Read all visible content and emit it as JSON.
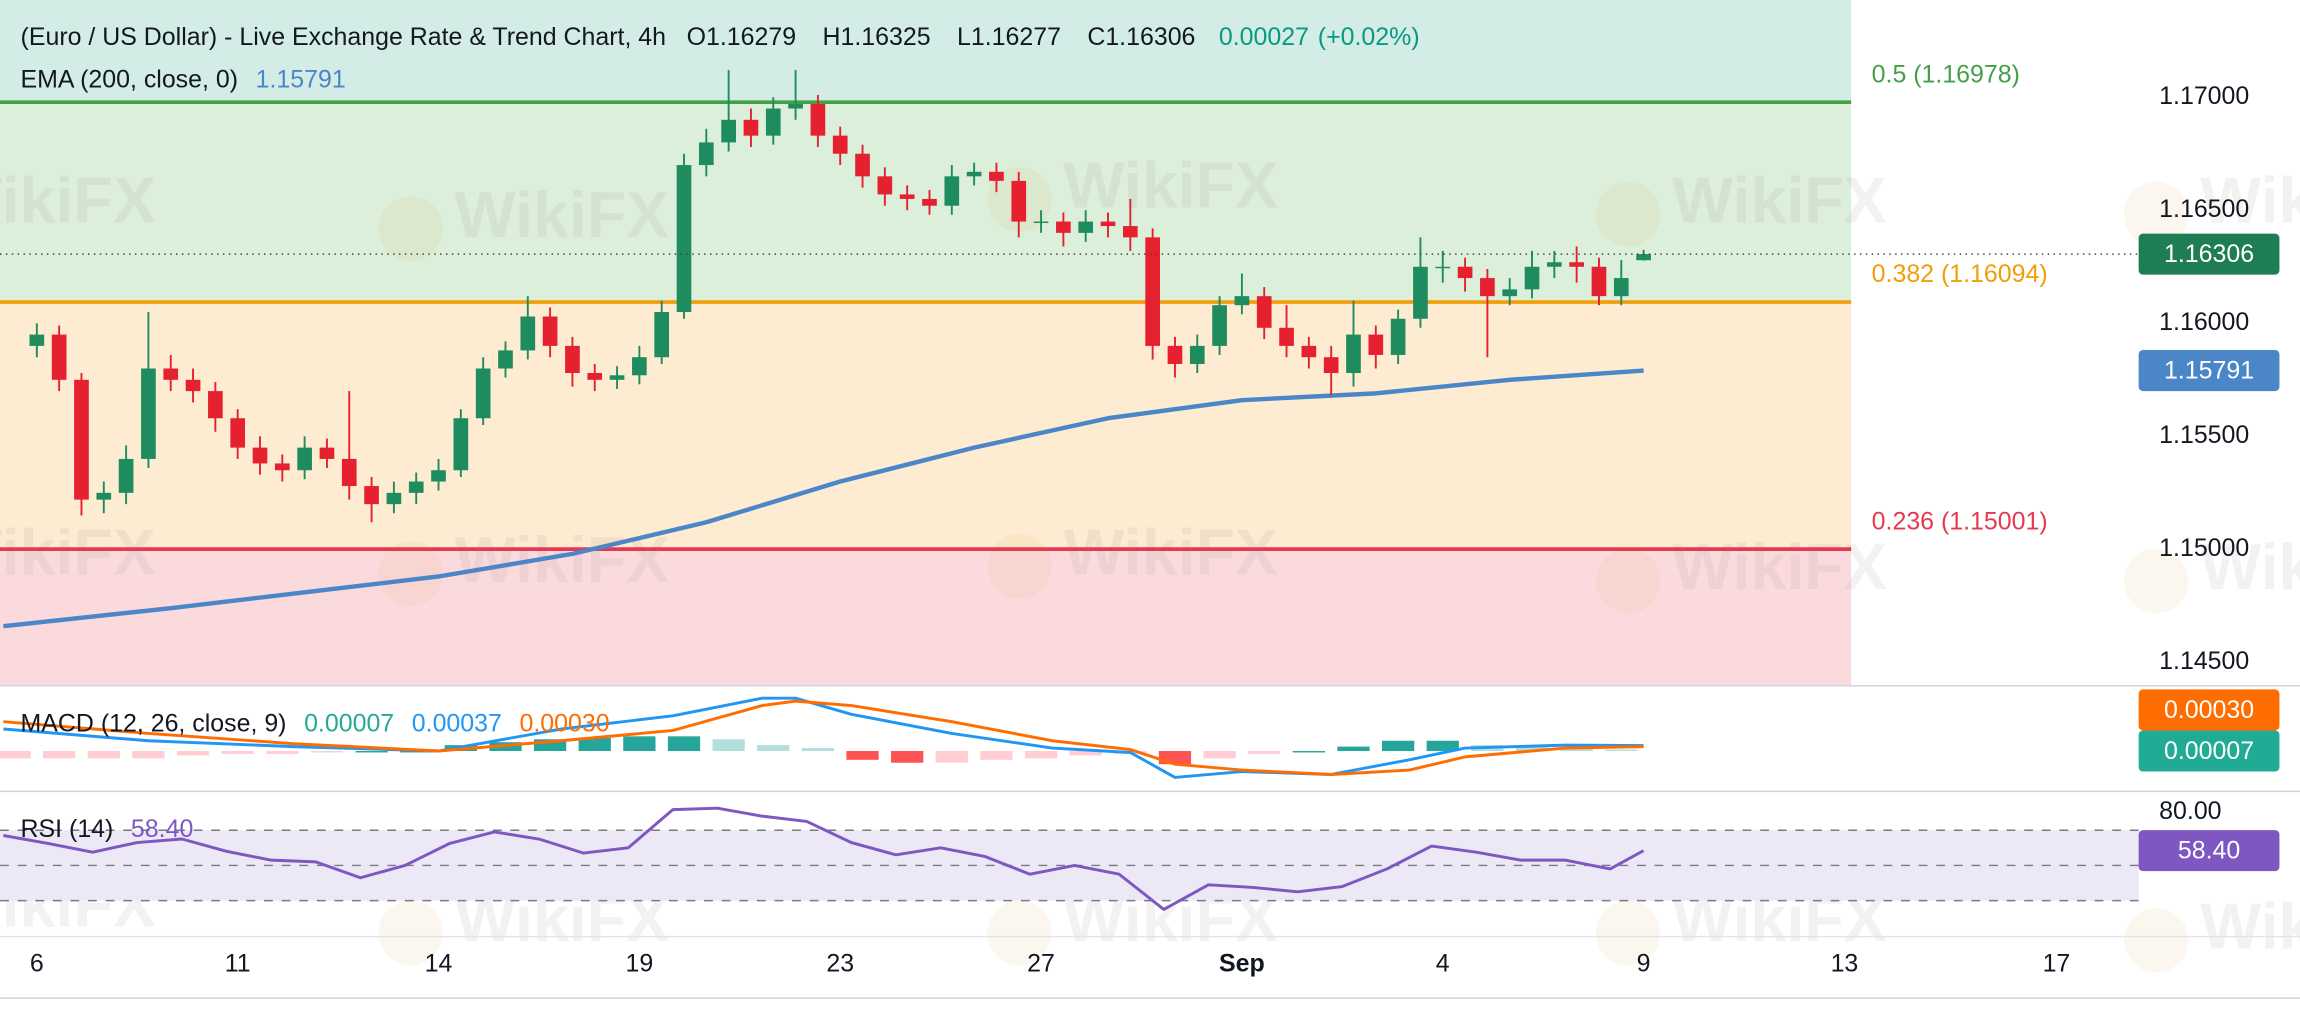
{
  "watermark": "WikiFX",
  "chart_data": [
    {
      "type": "candlestick",
      "title": "(Euro / US Dollar) - Live Exchange Rate & Trend Chart, 4h",
      "readout": [
        {
          "key": "O",
          "value": 1.16279
        },
        {
          "key": "H",
          "value": 1.16325
        },
        {
          "key": "L",
          "value": 1.16277
        },
        {
          "key": "C",
          "value": 1.16306
        }
      ],
      "change": 0.00027,
      "change_pct": "(+0.02%)",
      "change_color": "#089981",
      "up_color": "#1e8c5e",
      "down_color": "#e5202f",
      "x": [
        0,
        2,
        4,
        6,
        8,
        10,
        12,
        14,
        16,
        18,
        20,
        22,
        24,
        26,
        28,
        30,
        32,
        34,
        36,
        38,
        40,
        42,
        44,
        46,
        48,
        50,
        52,
        54,
        56,
        58,
        60,
        62,
        64,
        66,
        68,
        70,
        72,
        74,
        76,
        78,
        80,
        82,
        84,
        86,
        88,
        90,
        92,
        94,
        96,
        98,
        100,
        102,
        104,
        106,
        108,
        110,
        112,
        114,
        116,
        118,
        120,
        122,
        124,
        126,
        128,
        130,
        132,
        134,
        136,
        138,
        140,
        142,
        144
      ],
      "ohlc": [
        [
          1.159,
          1.16,
          1.1585,
          1.1595
        ],
        [
          1.1595,
          1.1599,
          1.157,
          1.1575
        ],
        [
          1.1575,
          1.1578,
          1.1515,
          1.1522
        ],
        [
          1.1522,
          1.153,
          1.1516,
          1.1525
        ],
        [
          1.1525,
          1.1546,
          1.152,
          1.154
        ],
        [
          1.154,
          1.1605,
          1.1536,
          1.158
        ],
        [
          1.158,
          1.1586,
          1.157,
          1.1575
        ],
        [
          1.1575,
          1.158,
          1.1565,
          1.157
        ],
        [
          1.157,
          1.1574,
          1.1552,
          1.1558
        ],
        [
          1.1558,
          1.1562,
          1.154,
          1.1545
        ],
        [
          1.1545,
          1.155,
          1.1533,
          1.1538
        ],
        [
          1.1538,
          1.1542,
          1.153,
          1.1535
        ],
        [
          1.1535,
          1.155,
          1.1531,
          1.1545
        ],
        [
          1.1545,
          1.1549,
          1.1536,
          1.154
        ],
        [
          1.154,
          1.157,
          1.1522,
          1.1528
        ],
        [
          1.1528,
          1.1532,
          1.1512,
          1.152
        ],
        [
          1.152,
          1.153,
          1.1516,
          1.1525
        ],
        [
          1.1525,
          1.1534,
          1.152,
          1.153
        ],
        [
          1.153,
          1.154,
          1.1526,
          1.1535
        ],
        [
          1.1535,
          1.1562,
          1.1532,
          1.1558
        ],
        [
          1.1558,
          1.1585,
          1.1555,
          1.158
        ],
        [
          1.158,
          1.1592,
          1.1576,
          1.1588
        ],
        [
          1.1588,
          1.1612,
          1.1584,
          1.1603
        ],
        [
          1.1603,
          1.1607,
          1.1585,
          1.159
        ],
        [
          1.159,
          1.1594,
          1.1572,
          1.1578
        ],
        [
          1.1578,
          1.1582,
          1.157,
          1.1575
        ],
        [
          1.1575,
          1.1581,
          1.1571,
          1.1577
        ],
        [
          1.1577,
          1.159,
          1.1573,
          1.1585
        ],
        [
          1.1585,
          1.161,
          1.1582,
          1.1605
        ],
        [
          1.1605,
          1.1675,
          1.1602,
          1.167
        ],
        [
          1.167,
          1.1686,
          1.1665,
          1.168
        ],
        [
          1.168,
          1.1712,
          1.1676,
          1.169
        ],
        [
          1.169,
          1.1695,
          1.1678,
          1.1683
        ],
        [
          1.1683,
          1.17,
          1.1679,
          1.1695
        ],
        [
          1.1695,
          1.1712,
          1.169,
          1.1697
        ],
        [
          1.1697,
          1.1701,
          1.1678,
          1.1683
        ],
        [
          1.1683,
          1.1687,
          1.167,
          1.1675
        ],
        [
          1.1675,
          1.1679,
          1.166,
          1.1665
        ],
        [
          1.1665,
          1.1669,
          1.1652,
          1.1657
        ],
        [
          1.1657,
          1.1661,
          1.165,
          1.1655
        ],
        [
          1.1655,
          1.1659,
          1.1648,
          1.1652
        ],
        [
          1.1652,
          1.167,
          1.1648,
          1.1665
        ],
        [
          1.1665,
          1.1671,
          1.1661,
          1.1667
        ],
        [
          1.1667,
          1.1671,
          1.1658,
          1.1663
        ],
        [
          1.1663,
          1.1667,
          1.1638,
          1.1645
        ],
        [
          1.1645,
          1.165,
          1.164,
          1.1645
        ],
        [
          1.1645,
          1.1649,
          1.1634,
          1.164
        ],
        [
          1.164,
          1.165,
          1.1636,
          1.1645
        ],
        [
          1.1645,
          1.1649,
          1.1638,
          1.1643
        ],
        [
          1.1643,
          1.1655,
          1.1632,
          1.1638
        ],
        [
          1.1638,
          1.1642,
          1.1584,
          1.159
        ],
        [
          1.159,
          1.1594,
          1.1576,
          1.1582
        ],
        [
          1.1582,
          1.1595,
          1.1578,
          1.159
        ],
        [
          1.159,
          1.1612,
          1.1586,
          1.1608
        ],
        [
          1.1608,
          1.1622,
          1.1604,
          1.1612
        ],
        [
          1.1612,
          1.1616,
          1.1593,
          1.1598
        ],
        [
          1.1598,
          1.1608,
          1.1585,
          1.159
        ],
        [
          1.159,
          1.1594,
          1.158,
          1.1585
        ],
        [
          1.1585,
          1.159,
          1.1568,
          1.1578
        ],
        [
          1.1578,
          1.161,
          1.1572,
          1.1595
        ],
        [
          1.1595,
          1.1599,
          1.158,
          1.1586
        ],
        [
          1.1586,
          1.1606,
          1.1582,
          1.1602
        ],
        [
          1.1602,
          1.1638,
          1.1598,
          1.1625
        ],
        [
          1.1625,
          1.1632,
          1.1618,
          1.1625
        ],
        [
          1.1625,
          1.1629,
          1.1614,
          1.162
        ],
        [
          1.162,
          1.1624,
          1.1585,
          1.1612
        ],
        [
          1.1612,
          1.162,
          1.1608,
          1.1615
        ],
        [
          1.1615,
          1.1632,
          1.1611,
          1.1625
        ],
        [
          1.1625,
          1.1632,
          1.162,
          1.1627
        ],
        [
          1.1627,
          1.1634,
          1.1618,
          1.1625
        ],
        [
          1.1625,
          1.1629,
          1.1608,
          1.1612
        ],
        [
          1.1612,
          1.1628,
          1.1608,
          1.162
        ],
        [
          1.16279,
          1.16325,
          1.16277,
          1.16306
        ]
      ],
      "last_price_color": "#1e7d52",
      "overlay": {
        "name": "EMA (200, close, 0)",
        "color": "#4a86c8",
        "x": [
          -3,
          12,
          24,
          36,
          48,
          60,
          72,
          84,
          96,
          108,
          120,
          132,
          144
        ],
        "values": [
          1.1466,
          1.1474,
          1.1481,
          1.1488,
          1.1498,
          1.1512,
          1.153,
          1.1545,
          1.1558,
          1.1566,
          1.1569,
          1.1575,
          1.15791
        ]
      },
      "top_fill": "#d3ede6",
      "levels": [
        {
          "label": "0.5 (1.16978)",
          "value": 1.16978,
          "color": "#43a047",
          "fill": "#dcefdb"
        },
        {
          "label": "0.382 (1.16094)",
          "value": 1.16094,
          "color": "#f29d0a",
          "fill": "#fdebd2"
        },
        {
          "label": "0.236 (1.15001)",
          "value": 1.15001,
          "color": "#e53950",
          "fill": "#fbdade"
        }
      ],
      "xlim": [
        -3.3,
        162.6
      ],
      "ylim": [
        1.144,
        1.1743
      ],
      "yticks": [
        {
          "value": 1.145,
          "label": "1.14500"
        },
        {
          "value": 1.15,
          "label": "1.15000"
        },
        {
          "value": 1.155,
          "label": "1.15500"
        },
        {
          "value": 1.16,
          "label": "1.16000"
        },
        {
          "value": 1.165,
          "label": "1.16500"
        },
        {
          "value": 1.17,
          "label": "1.17000"
        }
      ],
      "xticks": [
        {
          "value": 0,
          "label": "6"
        },
        {
          "value": 18,
          "label": "11"
        },
        {
          "value": 36,
          "label": "14"
        },
        {
          "value": 54,
          "label": "19"
        },
        {
          "value": 72,
          "label": "23"
        },
        {
          "value": 90,
          "label": "27"
        },
        {
          "value": 108,
          "label": "Sep",
          "bold": true
        },
        {
          "value": 126,
          "label": "4"
        },
        {
          "value": 144,
          "label": "9"
        },
        {
          "value": 162,
          "label": "13"
        },
        {
          "value": 181,
          "label": "17"
        }
      ]
    },
    {
      "type": "macd",
      "title": "MACD (12, 26, close, 9)",
      "x": [
        -3,
        10,
        23,
        36,
        47,
        57,
        65,
        68,
        73,
        82,
        91,
        98,
        102,
        108,
        116,
        123,
        128,
        137,
        144
      ],
      "series": [
        {
          "color": "#2196f3",
          "values": [
            0.0015,
            0.0007,
            0.0003,
            0.0,
            0.0015,
            0.0024,
            0.0036,
            0.0036,
            0.0025,
            0.0012,
            0.0002,
            -0.0001,
            -0.0018,
            -0.0014,
            -0.0016,
            -0.0006,
            0.0002,
            0.0004,
            0.00037
          ]
        },
        {
          "color": "#ff6d00",
          "values": [
            0.002,
            0.0012,
            0.0005,
            0.0,
            0.0007,
            0.0014,
            0.0031,
            0.0034,
            0.0031,
            0.002,
            0.0007,
            0.0001,
            -0.0009,
            -0.0013,
            -0.0016,
            -0.0013,
            -0.0004,
            0.0002,
            0.0003
          ]
        }
      ],
      "histogram": {
        "x": [
          -2,
          2,
          6,
          10,
          14,
          18,
          22,
          26,
          30,
          34,
          38,
          42,
          46,
          50,
          54,
          58,
          62,
          66,
          70,
          74,
          78,
          82,
          86,
          90,
          94,
          98,
          102,
          106,
          110,
          114,
          118,
          122,
          126,
          130,
          134,
          138,
          142
        ],
        "values": [
          -0.0005,
          -0.0005,
          -0.0005,
          -0.0005,
          -0.0003,
          -0.0002,
          -0.0002,
          -0.0001,
          0.0,
          0.0,
          0.0004,
          0.0006,
          0.0008,
          0.0009,
          0.001,
          0.001,
          0.0008,
          0.0004,
          0.0002,
          -0.0006,
          -0.0008,
          -0.0008,
          -0.0006,
          -0.0005,
          -0.0003,
          -0.0002,
          -0.0009,
          -0.0005,
          -0.0002,
          0.0,
          0.0003,
          0.0007,
          0.0007,
          0.0004,
          0.0003,
          0.0002,
          0.0001
        ],
        "colors": [
          "#26a69a",
          "#b2dfdb",
          "#ff5252",
          "#ffcdd2"
        ]
      },
      "readout": [
        {
          "value": 7e-05,
          "color": "#22ab94"
        },
        {
          "value": 0.00037,
          "color": "#2196f3"
        },
        {
          "value": 0.0003,
          "label": "0.00030",
          "color": "#ff6d00"
        }
      ],
      "ylim": [
        -0.0026,
        0.0042
      ]
    },
    {
      "type": "rsi",
      "title": "RSI (14)",
      "color": "#7e57c2",
      "x": [
        -3,
        1,
        5,
        9,
        13,
        17,
        21,
        25,
        29,
        33,
        37,
        41,
        45,
        49,
        53,
        57,
        61,
        65,
        69,
        73,
        77,
        81,
        85,
        89,
        93,
        97,
        101,
        105,
        109,
        113,
        117,
        121,
        125,
        129,
        133,
        137,
        141,
        144
      ],
      "values": [
        67,
        62.5,
        57.5,
        63,
        65,
        58,
        53,
        52,
        43,
        50,
        62.5,
        69,
        65,
        57,
        60,
        81.7,
        82.5,
        78,
        75,
        63,
        56,
        60,
        55,
        45,
        50,
        45,
        25,
        39,
        37.5,
        35,
        38,
        48,
        61,
        57.5,
        53,
        53,
        48,
        58.4
      ],
      "readout": {
        "value": 58.4,
        "label": "58.40"
      },
      "levels": [
        70,
        50,
        30
      ],
      "band_fill": "#ece8f5",
      "ylim": [
        15,
        90
      ],
      "yticks": [
        {
          "value": 80,
          "label": "80.00"
        }
      ]
    }
  ]
}
